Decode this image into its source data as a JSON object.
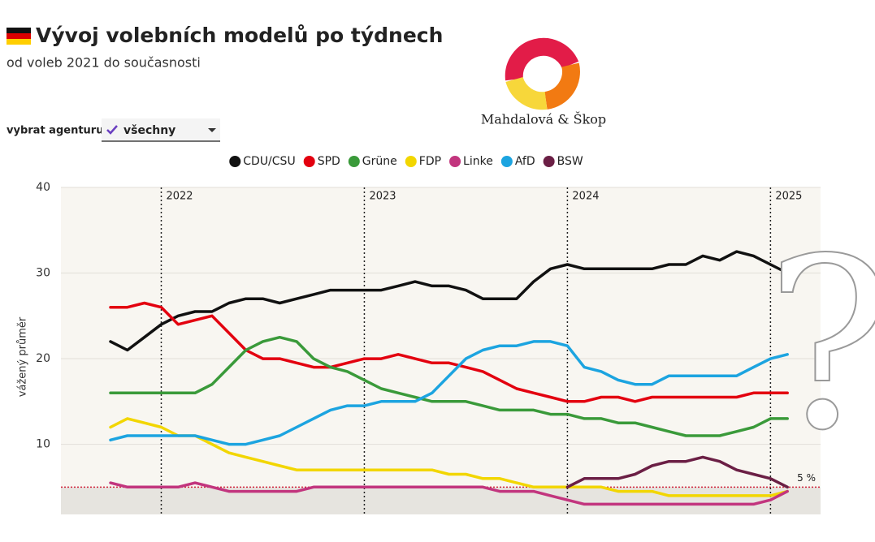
{
  "header": {
    "title": "Vývoj volebních modelů po týdnech",
    "subtitle": "od voleb 2021 do současnosti"
  },
  "filter": {
    "label": "vybrat agenturu",
    "value": "všechny"
  },
  "logo": {
    "text": "Mahdalová & Škop"
  },
  "overlay_text": "?",
  "chart_data": {
    "type": "line",
    "y_label": "vážený průměr",
    "categories": [
      null,
      null,
      null,
      "2022",
      null,
      null,
      null,
      null,
      null,
      null,
      null,
      null,
      null,
      null,
      null,
      "2023",
      null,
      null,
      null,
      null,
      null,
      null,
      null,
      null,
      null,
      null,
      null,
      "2024",
      null,
      null,
      null,
      null,
      null,
      null,
      null,
      null,
      null,
      null,
      null,
      "2025",
      null
    ],
    "ylim": [
      2,
      40
    ],
    "yticks": [
      10,
      20,
      30,
      40
    ],
    "grid": true,
    "threshold": {
      "value": 5,
      "label": "5 %",
      "color": "#d0213a"
    },
    "series": [
      {
        "name": "CDU/CSU",
        "color": "#111111",
        "values": [
          22,
          21,
          22.5,
          24,
          25,
          25.5,
          25.5,
          26.5,
          27,
          27,
          26.5,
          27,
          27.5,
          28,
          28,
          28,
          28,
          28.5,
          29,
          28.5,
          28.5,
          28,
          27,
          27,
          27,
          29,
          30.5,
          31,
          30.5,
          30.5,
          30.5,
          30.5,
          30.5,
          31,
          31,
          32,
          31.5,
          32.5,
          32,
          31,
          30
        ]
      },
      {
        "name": "SPD",
        "color": "#e3000f",
        "values": [
          26,
          26,
          26.5,
          26,
          24,
          24.5,
          25,
          23,
          21,
          20,
          20,
          19.5,
          19,
          19,
          19.5,
          20,
          20,
          20.5,
          20,
          19.5,
          19.5,
          19,
          18.5,
          17.5,
          16.5,
          16,
          15.5,
          15,
          15,
          15.5,
          15.5,
          15,
          15.5,
          15.5,
          15.5,
          15.5,
          15.5,
          15.5,
          16,
          16,
          16
        ]
      },
      {
        "name": "Grüne",
        "color": "#3a9a3a",
        "values": [
          16,
          16,
          16,
          16,
          16,
          16,
          17,
          19,
          21,
          22,
          22.5,
          22,
          20,
          19,
          18.5,
          17.5,
          16.5,
          16,
          15.5,
          15,
          15,
          15,
          14.5,
          14,
          14,
          14,
          13.5,
          13.5,
          13,
          13,
          12.5,
          12.5,
          12,
          11.5,
          11,
          11,
          11,
          11.5,
          12,
          13,
          13
        ]
      },
      {
        "name": "FDP",
        "color": "#f2d600",
        "values": [
          12,
          13,
          12.5,
          12,
          11,
          11,
          10,
          9,
          8.5,
          8,
          7.5,
          7,
          7,
          7,
          7,
          7,
          7,
          7,
          7,
          7,
          6.5,
          6.5,
          6,
          6,
          5.5,
          5,
          5,
          5,
          5,
          5,
          4.5,
          4.5,
          4.5,
          4,
          4,
          4,
          4,
          4,
          4,
          4,
          4.5
        ]
      },
      {
        "name": "Linke",
        "color": "#c2357e",
        "values": [
          5.5,
          5,
          5,
          5,
          5,
          5.5,
          5,
          4.5,
          4.5,
          4.5,
          4.5,
          4.5,
          5,
          5,
          5,
          5,
          5,
          5,
          5,
          5,
          5,
          5,
          5,
          4.5,
          4.5,
          4.5,
          4,
          3.5,
          3,
          3,
          3,
          3,
          3,
          3,
          3,
          3,
          3,
          3,
          3,
          3.5,
          4.5
        ]
      },
      {
        "name": "AfD",
        "color": "#1ca4e0",
        "values": [
          10.5,
          11,
          11,
          11,
          11,
          11,
          10.5,
          10,
          10,
          10.5,
          11,
          12,
          13,
          14,
          14.5,
          14.5,
          15,
          15,
          15,
          16,
          18,
          20,
          21,
          21.5,
          21.5,
          22,
          22,
          21.5,
          19,
          18.5,
          17.5,
          17,
          17,
          18,
          18,
          18,
          18,
          18,
          19,
          20,
          20.5
        ]
      },
      {
        "name": "BSW",
        "color": "#6b1f45",
        "values": [
          null,
          null,
          null,
          null,
          null,
          null,
          null,
          null,
          null,
          null,
          null,
          null,
          null,
          null,
          null,
          null,
          null,
          null,
          null,
          null,
          null,
          null,
          null,
          null,
          null,
          null,
          null,
          5,
          6,
          6,
          6,
          6.5,
          7.5,
          8,
          8,
          8.5,
          8,
          7,
          6.5,
          6,
          5
        ]
      }
    ]
  }
}
